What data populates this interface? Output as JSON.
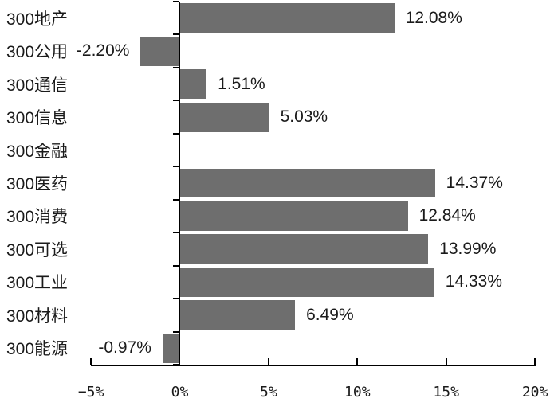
{
  "chart_data": {
    "type": "bar",
    "orientation": "horizontal",
    "title": "",
    "xlabel": "",
    "ylabel": "",
    "categories": [
      "300地产",
      "300公用",
      "300通信",
      "300信息",
      "300金融",
      "300医药",
      "300消费",
      "300可选",
      "300工业",
      "300材料",
      "300能源"
    ],
    "series": [
      {
        "name": "",
        "values": [
          12.08,
          -2.2,
          1.51,
          5.03,
          0,
          14.37,
          12.84,
          13.99,
          14.33,
          6.49,
          -0.97
        ]
      }
    ],
    "data_labels": [
      "12.08%",
      "-2.20%",
      "1.51%",
      "5.03%",
      "",
      "14.37%",
      "12.84%",
      "13.99%",
      "14.33%",
      "6.49%",
      "-0.97%"
    ],
    "x_axis": {
      "tick_labels": [
        "−5%",
        "0%",
        "5%",
        "10%",
        "15%",
        "20%"
      ],
      "tick_values": [
        -5,
        0,
        5,
        10,
        15,
        20
      ],
      "range": [
        -5,
        20
      ]
    },
    "grid": false,
    "legend_position": "none",
    "colors": {
      "bar": "#6e6e6e",
      "axis": "#000000",
      "text": "#1a1a1a",
      "background": "#ffffff"
    }
  }
}
